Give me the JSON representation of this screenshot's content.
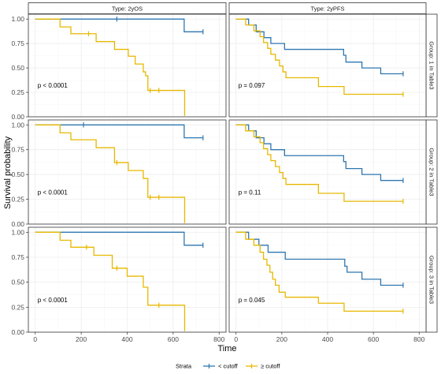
{
  "chart_data": {
    "type": "line",
    "subtype": "kaplan-meier",
    "xlabel": "Time",
    "ylabel": "Survival probability",
    "xlim": [
      -30,
      830
    ],
    "ylim": [
      0,
      1.05
    ],
    "xticks": [
      0,
      200,
      400,
      600,
      800
    ],
    "yticks": [
      0,
      0.25,
      0.5,
      0.75,
      1
    ],
    "ytick_labels": [
      "0.00",
      "0.25",
      "0.50",
      "0.75",
      "1.00"
    ],
    "columns": [
      "Type: 2yOS",
      "Type: 2yPFS"
    ],
    "rows": [
      "Group: 1 in Table3",
      "Group: 2 in Table3",
      "Group: 3 in Table3"
    ],
    "grid": true,
    "legend": {
      "title": "Strata",
      "position": "bottom",
      "entries": [
        {
          "label": "< cutoff",
          "color": "#2e77b0"
        },
        {
          "label": "≥ cutoff",
          "color": "#e7b800"
        }
      ]
    },
    "panels": [
      {
        "column": "Type: 2yOS",
        "row": "Group: 1 in Table3",
        "pvalue": "p < 0.0001",
        "series": [
          {
            "strata": "< cutoff",
            "steps": [
              [
                0,
                1.0
              ],
              [
                648,
                0.87
              ]
            ],
            "end": 730,
            "censor": [
              355,
              730
            ]
          },
          {
            "strata": "≥ cutoff",
            "steps": [
              [
                0,
                1.0
              ],
              [
                108,
                0.92
              ],
              [
                155,
                0.85
              ],
              [
                265,
                0.77
              ],
              [
                345,
                0.69
              ],
              [
                405,
                0.62
              ],
              [
                435,
                0.54
              ],
              [
                470,
                0.46
              ],
              [
                480,
                0.42
              ],
              [
                490,
                0.27
              ],
              [
                650,
                0.01
              ]
            ],
            "end": 650,
            "censor": [
              232,
              500,
              538
            ]
          }
        ]
      },
      {
        "column": "Type: 2yPFS",
        "row": "Group: 1 in Table3",
        "pvalue": "p = 0.097",
        "series": [
          {
            "strata": "< cutoff",
            "steps": [
              [
                0,
                1.0
              ],
              [
                55,
                0.94
              ],
              [
                88,
                0.87
              ],
              [
                122,
                0.81
              ],
              [
                152,
                0.75
              ],
              [
                212,
                0.69
              ],
              [
                470,
                0.63
              ],
              [
                480,
                0.56
              ],
              [
                550,
                0.5
              ],
              [
                632,
                0.44
              ]
            ],
            "end": 730,
            "censor": [
              730
            ]
          },
          {
            "strata": "≥ cutoff",
            "steps": [
              [
                0,
                1.0
              ],
              [
                42,
                0.94
              ],
              [
                78,
                0.88
              ],
              [
                105,
                0.82
              ],
              [
                120,
                0.76
              ],
              [
                138,
                0.7
              ],
              [
                152,
                0.64
              ],
              [
                172,
                0.58
              ],
              [
                190,
                0.52
              ],
              [
                205,
                0.46
              ],
              [
                218,
                0.4
              ],
              [
                360,
                0.31
              ],
              [
                472,
                0.23
              ]
            ],
            "end": 730,
            "censor": [
              730
            ]
          }
        ]
      },
      {
        "column": "Type: 2yOS",
        "row": "Group: 2 in Table3",
        "pvalue": "p < 0.0001",
        "series": [
          {
            "strata": "< cutoff",
            "steps": [
              [
                0,
                1.0
              ],
              [
                648,
                0.87
              ]
            ],
            "end": 730,
            "censor": [
              210,
              730
            ]
          },
          {
            "strata": "≥ cutoff",
            "steps": [
              [
                0,
                1.0
              ],
              [
                108,
                0.92
              ],
              [
                155,
                0.85
              ],
              [
                265,
                0.77
              ],
              [
                345,
                0.62
              ],
              [
                405,
                0.54
              ],
              [
                470,
                0.46
              ],
              [
                490,
                0.27
              ],
              [
                650,
                0.01
              ]
            ],
            "end": 650,
            "censor": [
              355,
              500,
              538
            ]
          }
        ]
      },
      {
        "column": "Type: 2yPFS",
        "row": "Group: 2 in Table3",
        "pvalue": "p = 0.11",
        "series": [
          {
            "strata": "< cutoff",
            "steps": [
              [
                0,
                1.0
              ],
              [
                55,
                0.94
              ],
              [
                88,
                0.87
              ],
              [
                122,
                0.81
              ],
              [
                152,
                0.75
              ],
              [
                212,
                0.69
              ],
              [
                470,
                0.63
              ],
              [
                480,
                0.56
              ],
              [
                550,
                0.5
              ],
              [
                632,
                0.44
              ]
            ],
            "end": 730,
            "censor": [
              730
            ]
          },
          {
            "strata": "≥ cutoff",
            "steps": [
              [
                0,
                1.0
              ],
              [
                42,
                0.94
              ],
              [
                78,
                0.88
              ],
              [
                105,
                0.82
              ],
              [
                120,
                0.76
              ],
              [
                138,
                0.7
              ],
              [
                152,
                0.64
              ],
              [
                172,
                0.58
              ],
              [
                190,
                0.52
              ],
              [
                205,
                0.46
              ],
              [
                218,
                0.4
              ],
              [
                360,
                0.31
              ],
              [
                472,
                0.23
              ]
            ],
            "end": 730,
            "censor": [
              730
            ]
          }
        ]
      },
      {
        "column": "Type: 2yOS",
        "row": "Group: 3 in Table3",
        "pvalue": "p < 0.0001",
        "series": [
          {
            "strata": "< cutoff",
            "steps": [
              [
                0,
                1.0
              ],
              [
                648,
                0.87
              ]
            ],
            "end": 730,
            "censor": [
              730
            ]
          },
          {
            "strata": "≥ cutoff",
            "steps": [
              [
                0,
                1.0
              ],
              [
                108,
                0.92
              ],
              [
                155,
                0.85
              ],
              [
                255,
                0.77
              ],
              [
                335,
                0.64
              ],
              [
                400,
                0.56
              ],
              [
                470,
                0.45
              ],
              [
                490,
                0.27
              ],
              [
                650,
                0.01
              ]
            ],
            "end": 650,
            "censor": [
              223,
              355,
              538
            ]
          }
        ]
      },
      {
        "column": "Type: 2yPFS",
        "row": "Group: 3 in Table3",
        "pvalue": "p = 0.045",
        "series": [
          {
            "strata": "< cutoff",
            "steps": [
              [
                0,
                1.0
              ],
              [
                55,
                0.93
              ],
              [
                100,
                0.87
              ],
              [
                140,
                0.8
              ],
              [
                215,
                0.73
              ],
              [
                475,
                0.66
              ],
              [
                485,
                0.6
              ],
              [
                550,
                0.53
              ],
              [
                632,
                0.47
              ]
            ],
            "end": 730,
            "censor": [
              730
            ]
          },
          {
            "strata": "≥ cutoff",
            "steps": [
              [
                0,
                1.0
              ],
              [
                42,
                0.93
              ],
              [
                78,
                0.87
              ],
              [
                105,
                0.8
              ],
              [
                120,
                0.73
              ],
              [
                135,
                0.67
              ],
              [
                148,
                0.6
              ],
              [
                160,
                0.53
              ],
              [
                172,
                0.47
              ],
              [
                188,
                0.4
              ],
              [
                215,
                0.35
              ],
              [
                360,
                0.29
              ],
              [
                472,
                0.21
              ]
            ],
            "end": 730,
            "censor": [
              730
            ]
          }
        ]
      }
    ]
  }
}
